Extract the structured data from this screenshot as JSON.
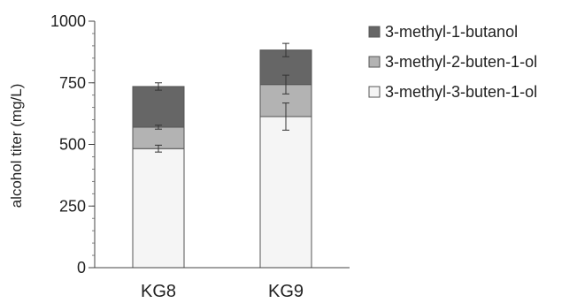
{
  "chart_data": {
    "type": "bar",
    "stacked": true,
    "title": "",
    "xlabel": "",
    "ylabel": "alcohol titer (mg/L)",
    "ylim": [
      0,
      1000
    ],
    "yticks": [
      0,
      250,
      500,
      750,
      1000
    ],
    "grid": false,
    "legend_position": "right",
    "categories": [
      "KG8",
      "KG9"
    ],
    "series": [
      {
        "name": "3-methyl-3-buten-1-ol",
        "color": "#f5f5f5",
        "values": [
          483,
          613
        ],
        "errors": [
          14,
          55
        ]
      },
      {
        "name": "3-methyl-2-buten-1-ol",
        "color": "#b3b3b3",
        "values": [
          87,
          130
        ],
        "errors": [
          8,
          38
        ]
      },
      {
        "name": "3-methyl-1-butanol",
        "color": "#666666",
        "values": [
          165,
          140
        ],
        "errors": [
          15,
          27
        ]
      }
    ],
    "legend_order": [
      2,
      1,
      0
    ]
  }
}
